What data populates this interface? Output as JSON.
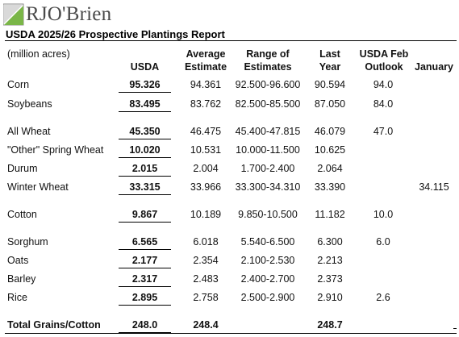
{
  "brand": {
    "logo_text": "RJO'Brien",
    "logo_green": "#7ab648",
    "logo_gray": "#5a5a5a"
  },
  "report": {
    "title": "USDA 2025/26 Prospective Plantings Report",
    "units": "(million acres)"
  },
  "columns": {
    "usda": "USDA",
    "avg": [
      "Average",
      "Estimate"
    ],
    "range": [
      "Range of",
      "Estimates"
    ],
    "last": [
      "Last",
      "Year"
    ],
    "feb": [
      "USDA Feb",
      "Outlook"
    ],
    "jan": "January"
  },
  "rows": [
    {
      "label": "Corn",
      "usda": "95.326",
      "avg": "94.361",
      "range": "92.500-96.600",
      "last": "90.594",
      "feb": "94.0",
      "jan": ""
    },
    {
      "label": "Soybeans",
      "usda": "83.495",
      "avg": "83.762",
      "range": "82.500-85.500",
      "last": "87.050",
      "feb": "84.0",
      "jan": ""
    },
    {
      "label": "All Wheat",
      "usda": "45.350",
      "avg": "46.475",
      "range": "45.400-47.815",
      "last": "46.079",
      "feb": "47.0",
      "jan": ""
    },
    {
      "label": "\"Other\" Spring Wheat",
      "usda": "10.020",
      "avg": "10.531",
      "range": "10.000-11.500",
      "last": "10.625",
      "feb": "",
      "jan": ""
    },
    {
      "label": "Durum",
      "usda": "2.015",
      "avg": "2.004",
      "range": "1.700-2.400",
      "last": "2.064",
      "feb": "",
      "jan": ""
    },
    {
      "label": "Winter Wheat",
      "usda": "33.315",
      "avg": "33.966",
      "range": "33.300-34.310",
      "last": "33.390",
      "feb": "",
      "jan": "34.115"
    },
    {
      "label": "Cotton",
      "usda": "9.867",
      "avg": "10.189",
      "range": "9.850-10.500",
      "last": "11.182",
      "feb": "10.0",
      "jan": ""
    },
    {
      "label": "Sorghum",
      "usda": "6.565",
      "avg": "6.018",
      "range": "5.540-6.500",
      "last": "6.300",
      "feb": "6.0",
      "jan": ""
    },
    {
      "label": "Oats",
      "usda": "2.177",
      "avg": "2.354",
      "range": "2.100-2.530",
      "last": "2.213",
      "feb": "",
      "jan": ""
    },
    {
      "label": "Barley",
      "usda": "2.317",
      "avg": "2.483",
      "range": "2.400-2.700",
      "last": "2.373",
      "feb": "",
      "jan": ""
    },
    {
      "label": "Rice",
      "usda": "2.895",
      "avg": "2.758",
      "range": "2.500-2.900",
      "last": "2.910",
      "feb": "2.6",
      "jan": ""
    }
  ],
  "total": {
    "label": "Total Grains/Cotton",
    "usda": "248.0",
    "avg": "248.4",
    "range": "",
    "last": "248.7",
    "feb": "",
    "jan": ""
  }
}
